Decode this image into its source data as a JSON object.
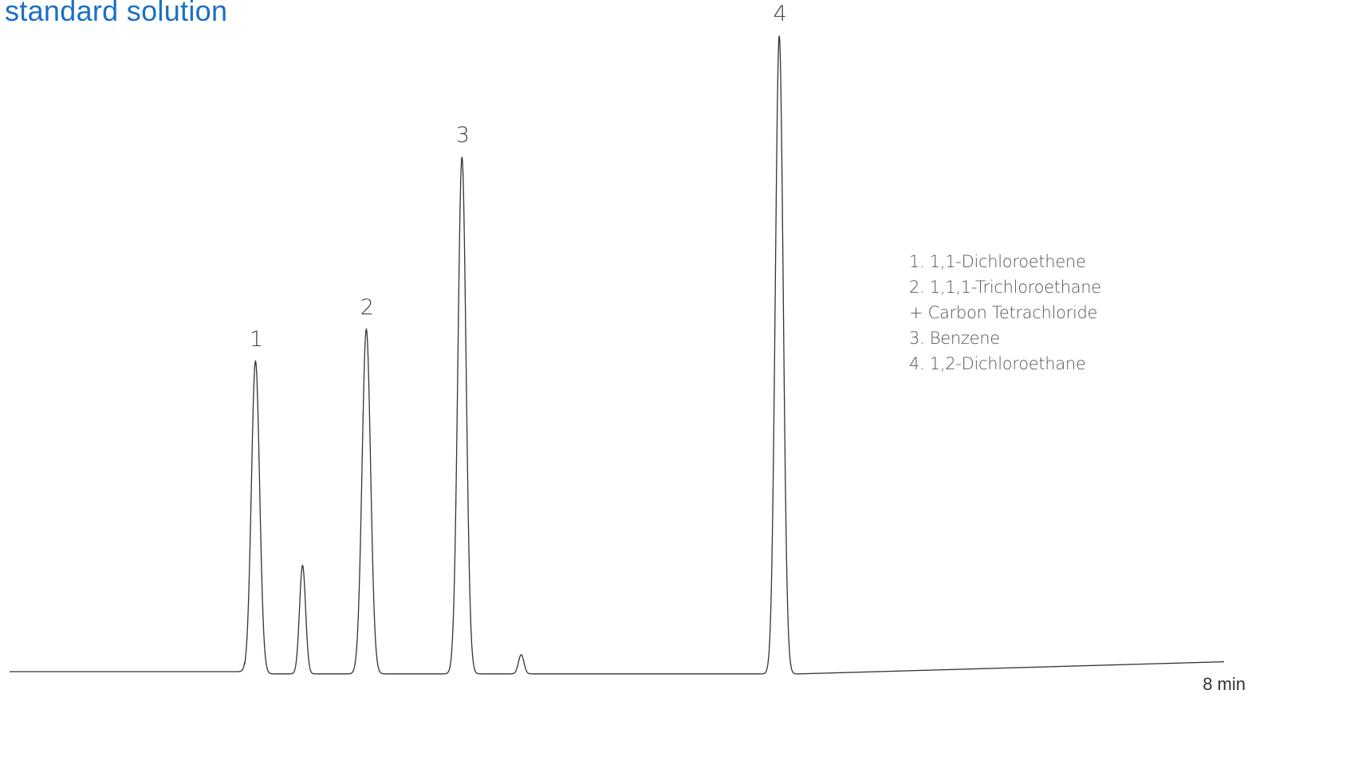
{
  "title": "standard solution",
  "colors": {
    "title": "#1a6fc4",
    "trace": "#333333"
  },
  "chart_data": {
    "type": "line",
    "title": "standard solution",
    "x_end_label": "8 min",
    "xlim": [
      0,
      8
    ],
    "ylim": [
      0,
      100
    ],
    "grid": false,
    "legend_position": "right",
    "peaks": [
      {
        "label": "1",
        "x": 1.62,
        "height": 49,
        "width": 0.027
      },
      {
        "label": "",
        "x": 1.93,
        "height": 17,
        "width": 0.02
      },
      {
        "label": "2",
        "x": 2.35,
        "height": 54,
        "width": 0.028
      },
      {
        "label": "3",
        "x": 2.98,
        "height": 81,
        "width": 0.027
      },
      {
        "label": "",
        "x": 3.37,
        "height": 3,
        "width": 0.018
      },
      {
        "label": "4",
        "x": 5.07,
        "height": 100,
        "width": 0.026
      }
    ],
    "legend": [
      "1. 1,1-Dichloroethene",
      "2. 1,1,1-Trichloroethane",
      "+ Carbon Tetrachloride",
      "3. Benzene",
      "4. 1,2-Dichloroethane"
    ]
  }
}
